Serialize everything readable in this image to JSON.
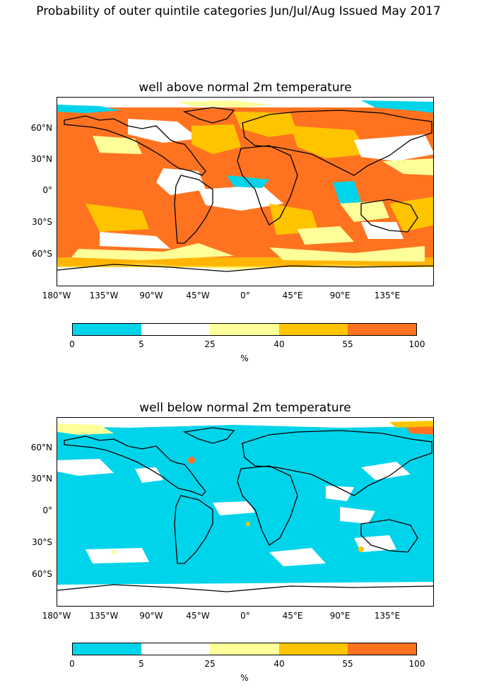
{
  "figure": {
    "title": "Probability of outer quintile categories Jun/Jul/Aug Issued May 2017"
  },
  "legend": {
    "colors": [
      "#00d4ea",
      "#ffffff",
      "#ffff99",
      "#ffc400",
      "#ff7320"
    ],
    "ticks": [
      "0",
      "5",
      "25",
      "40",
      "55",
      "100"
    ],
    "unit": "%"
  },
  "axes": {
    "lat_labels": [
      "60°N",
      "30°N",
      "0°",
      "30°S",
      "60°S"
    ],
    "lon_labels": [
      "180°W",
      "135°W",
      "90°W",
      "45°W",
      "0°",
      "45°E",
      "90°E",
      "135°E"
    ]
  },
  "panels": [
    {
      "title": "well above normal 2m temperature",
      "dominant_category": "55-100",
      "description_colors": {
        "background": "#ff7320",
        "secondary": "#ffc400",
        "tertiary": "#ffff99"
      }
    },
    {
      "title": "well below normal 2m temperature",
      "dominant_category": "0-5",
      "description_colors": {
        "background": "#00d4ea",
        "secondary": "#ffffff",
        "tertiary": "#ffff99"
      }
    }
  ]
}
